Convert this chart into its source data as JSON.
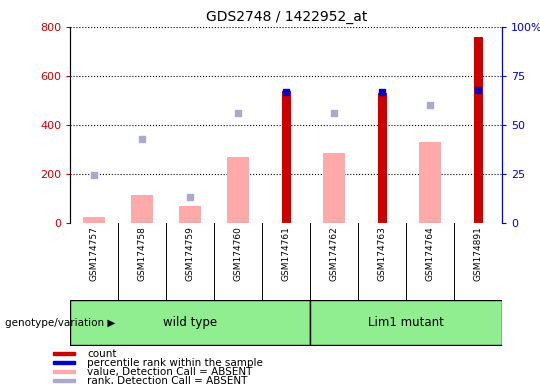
{
  "title": "GDS2748 / 1422952_at",
  "samples": [
    "GSM174757",
    "GSM174758",
    "GSM174759",
    "GSM174760",
    "GSM174761",
    "GSM174762",
    "GSM174763",
    "GSM174764",
    "GSM174891"
  ],
  "count": [
    null,
    null,
    null,
    null,
    540,
    null,
    530,
    null,
    760
  ],
  "percentile_rank": [
    null,
    null,
    null,
    null,
    67,
    null,
    67,
    null,
    68
  ],
  "value_absent": [
    25,
    115,
    70,
    270,
    null,
    285,
    null,
    330,
    null
  ],
  "rank_absent": [
    195,
    340,
    105,
    450,
    null,
    450,
    null,
    480,
    null
  ],
  "ylim_left": [
    0,
    800
  ],
  "ylim_right": [
    0,
    100
  ],
  "yticks_left": [
    0,
    200,
    400,
    600,
    800
  ],
  "ytick_labels_left": [
    "0",
    "200",
    "400",
    "600",
    "800"
  ],
  "yticks_right": [
    0,
    25,
    50,
    75,
    100
  ],
  "ytick_labels_right": [
    "0",
    "25",
    "50",
    "75",
    "100%"
  ],
  "left_tick_color": "#cc0000",
  "right_tick_color": "#0000cc",
  "color_count": "#cc0000",
  "color_rank": "#0000cc",
  "color_value_absent": "#ffaaaa",
  "color_rank_absent": "#aaaacc",
  "group1_label": "wild type",
  "group2_label": "Lim1 mutant",
  "group1_indices": [
    0,
    1,
    2,
    3,
    4
  ],
  "group2_indices": [
    5,
    6,
    7,
    8
  ],
  "group_color": "#90ee90",
  "sample_bg": "#c8c8c8",
  "legend_items": [
    {
      "color": "#cc0000",
      "label": "count"
    },
    {
      "color": "#0000cc",
      "label": "percentile rank within the sample"
    },
    {
      "color": "#ffaaaa",
      "label": "value, Detection Call = ABSENT"
    },
    {
      "color": "#aaaacc",
      "label": "rank, Detection Call = ABSENT"
    }
  ]
}
